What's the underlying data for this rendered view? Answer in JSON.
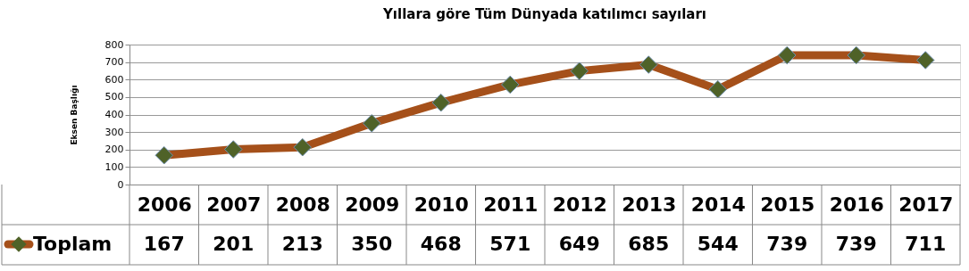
{
  "chart_data": {
    "type": "line",
    "title": "Yıllara göre  Tüm Dünyada katılımcı sayıları",
    "ylabel": "Eksen Başlığı",
    "categories": [
      "2006",
      "2007",
      "2008",
      "2009",
      "2010",
      "2011",
      "2012",
      "2013",
      "2014",
      "2015",
      "2016",
      "2017"
    ],
    "series": [
      {
        "name": "Toplam",
        "color": "#a5501a",
        "values": [
          167,
          201,
          213,
          350,
          468,
          571,
          649,
          685,
          544,
          739,
          739,
          711
        ]
      }
    ],
    "ylim": [
      0,
      800
    ],
    "yticks": [
      0,
      100,
      200,
      300,
      400,
      500,
      600,
      700,
      800
    ],
    "grid": "y",
    "marker": "diamond",
    "line_style": "solid",
    "data_labels": true,
    "legend": "bottom left"
  }
}
